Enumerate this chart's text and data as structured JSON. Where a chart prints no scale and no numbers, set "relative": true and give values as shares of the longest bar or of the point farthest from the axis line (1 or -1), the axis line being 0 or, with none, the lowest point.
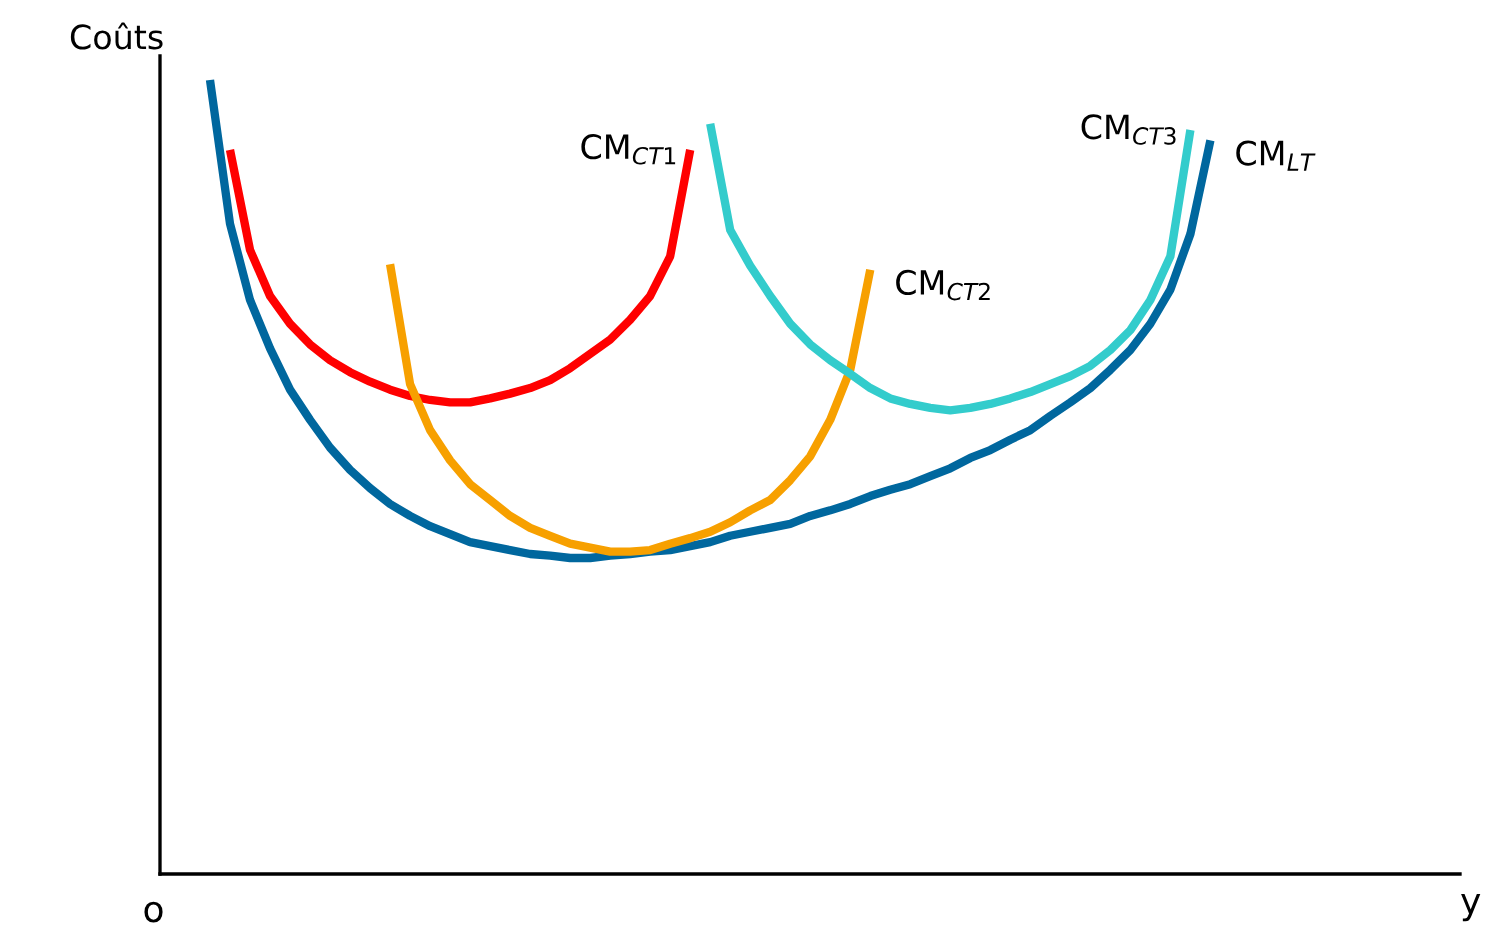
{
  "chart_data": {
    "type": "line",
    "relative": true,
    "ylabel": "Coûts",
    "annotations": [
      "o",
      "y"
    ],
    "marker": "none",
    "line_style": "solid",
    "categories": [
      null,
      null,
      null,
      null,
      null,
      null,
      null,
      null,
      null,
      null,
      null,
      null,
      null,
      null,
      null,
      null,
      null,
      null,
      null,
      null,
      null,
      null,
      null,
      null,
      null,
      null,
      null,
      null,
      null,
      null,
      null,
      null,
      null,
      null,
      null,
      null,
      null,
      null,
      null,
      null,
      null,
      null,
      null,
      null,
      null,
      null,
      null,
      null,
      null,
      null,
      null
    ],
    "series": [
      {
        "name": "CM$_{LT}$",
        "color": "#00679e",
        "values": [
          1.0,
          0.819,
          0.723,
          0.662,
          0.61,
          0.572,
          0.537,
          0.509,
          0.486,
          0.466,
          0.451,
          0.438,
          0.428,
          0.418,
          0.413,
          0.408,
          0.403,
          0.401,
          0.398,
          0.398,
          0.401,
          0.403,
          0.406,
          0.408,
          0.413,
          0.418,
          0.426,
          0.431,
          0.436,
          0.441,
          0.451,
          0.458,
          0.466,
          0.476,
          0.484,
          0.491,
          0.501,
          0.511,
          0.524,
          0.534,
          0.547,
          0.559,
          0.577,
          0.594,
          0.612,
          0.635,
          0.66,
          0.693,
          0.736,
          0.806,
          0.924
        ]
      },
      {
        "name": "CM$_{CT1}$",
        "color": "#ff0000",
        "values": [
          null,
          0.912,
          0.786,
          0.728,
          0.693,
          0.667,
          0.647,
          0.632,
          0.62,
          0.61,
          0.602,
          0.597,
          0.594,
          0.594,
          0.599,
          0.605,
          0.612,
          0.622,
          0.637,
          0.655,
          0.673,
          0.698,
          0.728,
          0.778,
          0.912,
          null,
          null,
          null,
          null,
          null,
          null,
          null,
          null,
          null,
          null,
          null,
          null,
          null,
          null,
          null,
          null,
          null,
          null,
          null,
          null,
          null,
          null,
          null,
          null,
          null,
          null
        ]
      },
      {
        "name": "CM$_{CT2}$",
        "color": "#f7a000",
        "values": [
          null,
          null,
          null,
          null,
          null,
          null,
          null,
          null,
          null,
          0.768,
          0.617,
          0.559,
          0.521,
          0.491,
          0.471,
          0.451,
          0.436,
          0.426,
          0.416,
          0.411,
          0.406,
          0.406,
          0.408,
          0.416,
          0.423,
          0.431,
          0.443,
          0.458,
          0.471,
          0.496,
          0.526,
          0.572,
          0.635,
          0.761,
          null,
          null,
          null,
          null,
          null,
          null,
          null,
          null,
          null,
          null,
          null,
          null,
          null,
          null,
          null,
          null,
          null
        ]
      },
      {
        "name": "CM$_{CT3}$",
        "color": "#33cccc",
        "values": [
          null,
          null,
          null,
          null,
          null,
          null,
          null,
          null,
          null,
          null,
          null,
          null,
          null,
          null,
          null,
          null,
          null,
          null,
          null,
          null,
          null,
          null,
          null,
          null,
          null,
          0.945,
          0.811,
          0.766,
          0.728,
          0.693,
          0.667,
          0.647,
          0.63,
          0.612,
          0.599,
          0.592,
          0.587,
          0.584,
          0.587,
          0.592,
          0.599,
          0.607,
          0.617,
          0.627,
          0.64,
          0.66,
          0.685,
          0.723,
          0.778,
          0.937,
          null
        ]
      }
    ]
  }
}
